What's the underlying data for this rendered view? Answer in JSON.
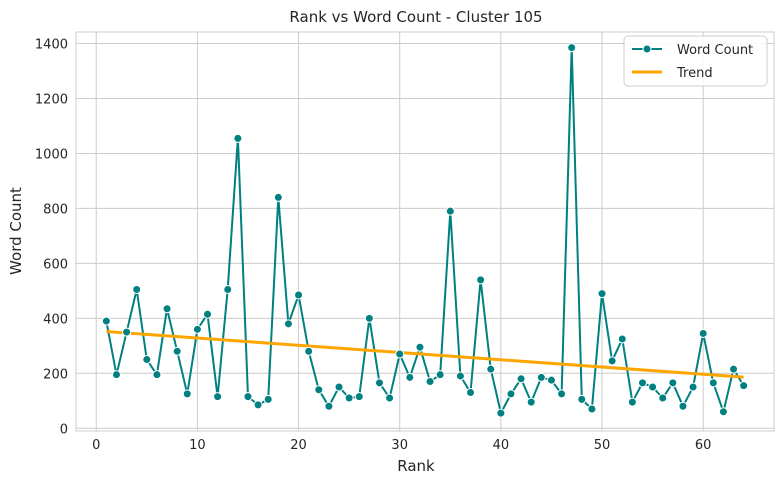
{
  "chart_data": {
    "type": "line",
    "title": "Rank vs Word Count - Cluster 105",
    "xlabel": "Rank",
    "ylabel": "Word Count",
    "xlim": [
      -2,
      67
    ],
    "ylim": [
      -10,
      1442
    ],
    "xticks": [
      0,
      10,
      20,
      30,
      40,
      50,
      60
    ],
    "yticks": [
      0,
      200,
      400,
      600,
      800,
      1000,
      1200,
      1400
    ],
    "grid": true,
    "legend_position": "top-right",
    "series": [
      {
        "name": "Word Count",
        "color": "#008080",
        "marker": "circle",
        "x": [
          1,
          2,
          3,
          4,
          5,
          6,
          7,
          8,
          9,
          10,
          11,
          12,
          13,
          14,
          15,
          16,
          17,
          18,
          19,
          20,
          21,
          22,
          23,
          24,
          25,
          26,
          27,
          28,
          29,
          30,
          31,
          32,
          33,
          34,
          35,
          36,
          37,
          38,
          39,
          40,
          41,
          42,
          43,
          44,
          45,
          46,
          47,
          48,
          49,
          50,
          51,
          52,
          53,
          54,
          55,
          56,
          57,
          58,
          59,
          60,
          61,
          62,
          63,
          64
        ],
        "values": [
          390,
          195,
          350,
          505,
          250,
          195,
          435,
          280,
          125,
          360,
          415,
          115,
          505,
          1055,
          115,
          85,
          105,
          840,
          380,
          485,
          280,
          140,
          80,
          150,
          110,
          115,
          400,
          165,
          110,
          270,
          185,
          295,
          170,
          195,
          790,
          190,
          130,
          540,
          215,
          55,
          125,
          180,
          95,
          185,
          175,
          125,
          1385,
          105,
          70,
          490,
          245,
          325,
          95,
          165,
          150,
          110,
          165,
          80,
          150,
          345,
          165,
          60,
          215,
          155
        ]
      },
      {
        "name": "Trend",
        "color": "#ffa500",
        "x": [
          1,
          64
        ],
        "values": [
          352,
          186
        ]
      }
    ]
  }
}
